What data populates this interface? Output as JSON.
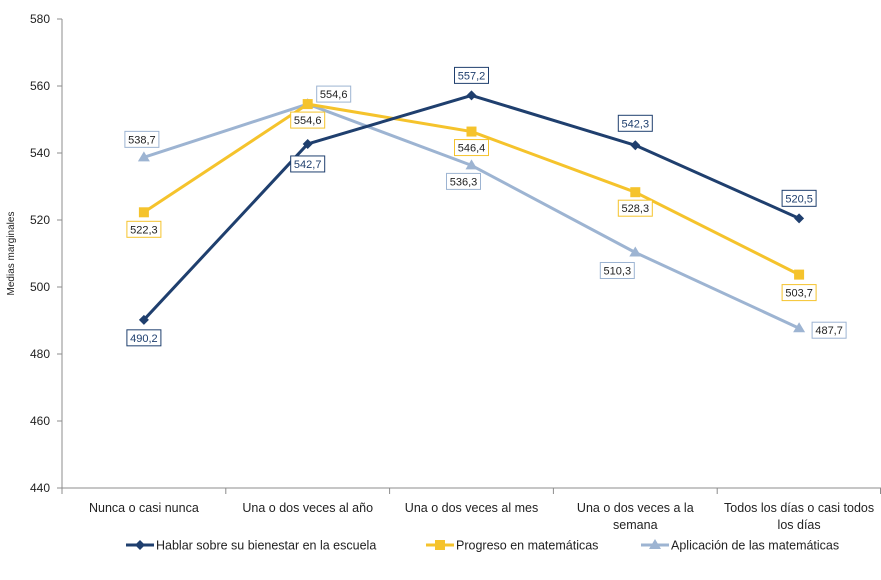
{
  "colors": {
    "navy": "#1f3f6e",
    "gold": "#f5c32c",
    "lightblue": "#9db4d2",
    "axis": "#8c8c8c",
    "text": "#222222"
  },
  "chart_data": {
    "type": "line",
    "title": "",
    "xlabel": "",
    "ylabel": "Medias marginales",
    "ylim": [
      440,
      580
    ],
    "yticks": [
      440,
      460,
      480,
      500,
      520,
      540,
      560,
      580
    ],
    "grid": false,
    "legend_position": "bottom",
    "categories": [
      [
        "Nunca o casi nunca"
      ],
      [
        "Una o dos veces al año"
      ],
      [
        "Una o dos veces al mes"
      ],
      [
        "Una o dos veces a la",
        "semana"
      ],
      [
        "Todos los días o casi todos",
        "los días"
      ]
    ],
    "series": [
      {
        "name": "Hablar sobre su bienestar en la escuela",
        "color": "#1f3f6e",
        "marker": "diamond",
        "values": [
          490.2,
          542.7,
          557.2,
          542.3,
          520.5
        ],
        "labels": [
          "490,2",
          "542,7",
          "557,2",
          "542,3",
          "520,5"
        ]
      },
      {
        "name": "Progreso en matemáticas",
        "color": "#f5c32c",
        "marker": "square",
        "values": [
          522.3,
          554.6,
          546.4,
          528.3,
          503.7
        ],
        "labels": [
          "522,3",
          "554,6",
          "546,4",
          "528,3",
          "503,7"
        ]
      },
      {
        "name": "Aplicación de las matemáticas",
        "color": "#9db4d2",
        "marker": "triangle",
        "values": [
          538.7,
          554.6,
          536.3,
          510.3,
          487.7
        ],
        "labels": [
          "538,7",
          "554,6",
          "536,3",
          "510,3",
          "487,7"
        ]
      }
    ]
  }
}
